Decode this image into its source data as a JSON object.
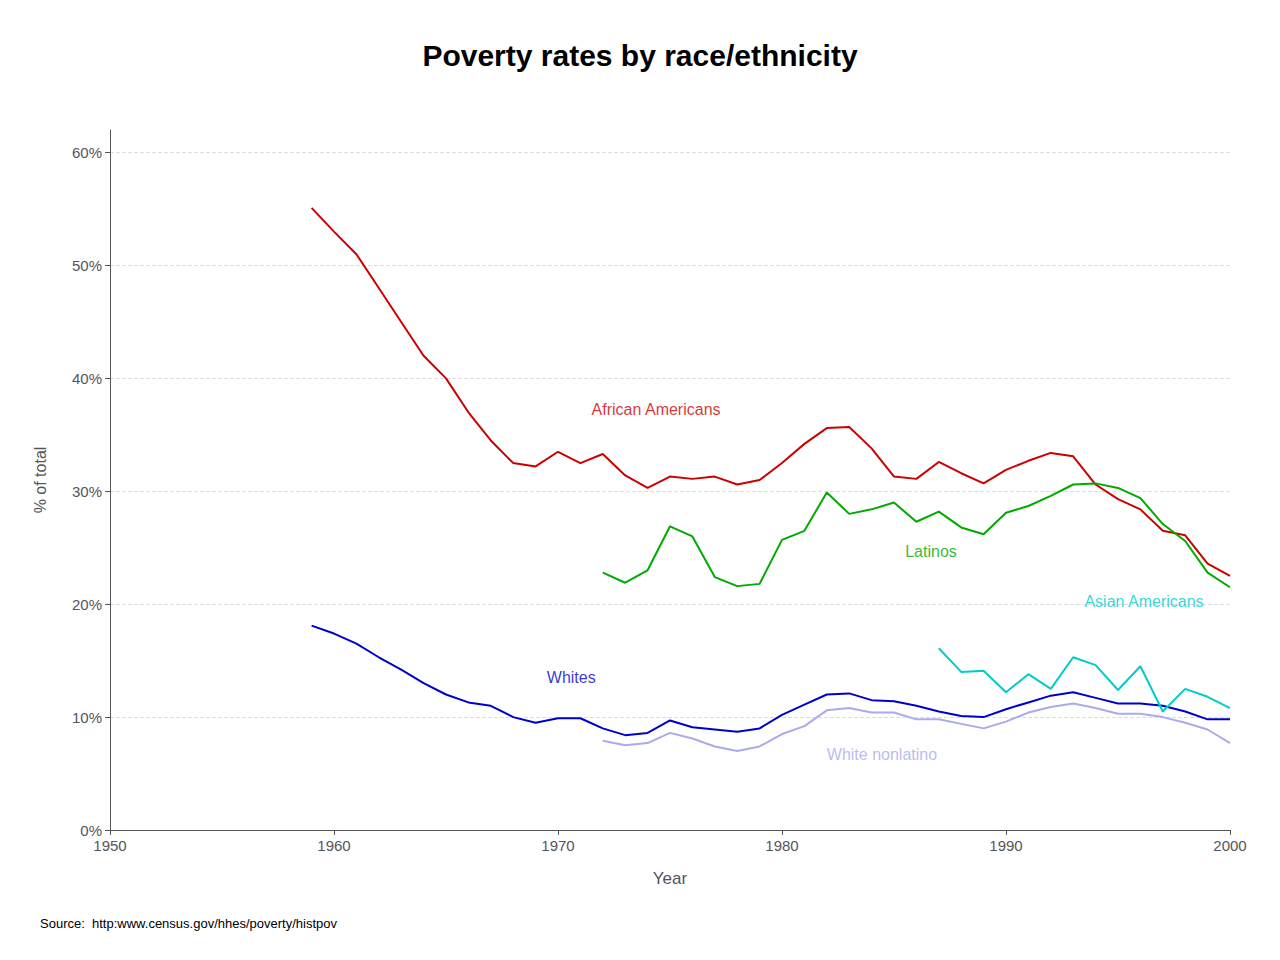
{
  "chart_data": {
    "type": "line",
    "title": "Poverty rates by race/ethnicity",
    "xlabel": "Year",
    "ylabel": "% of total",
    "source": "Source:  http:www.census.gov/hhes/poverty/histpov",
    "xlim": [
      1950,
      2000
    ],
    "ylim": [
      0,
      62
    ],
    "xticks": [
      1950,
      1960,
      1970,
      1980,
      1990,
      2000
    ],
    "yticks": [
      {
        "value": 0,
        "label": "0%"
      },
      {
        "value": 10,
        "label": "10%"
      },
      {
        "value": 20,
        "label": "20%"
      },
      {
        "value": 30,
        "label": "30%"
      },
      {
        "value": 40,
        "label": "40%"
      },
      {
        "value": 50,
        "label": "50%"
      },
      {
        "value": 60,
        "label": "60%"
      }
    ],
    "grid": true,
    "series": [
      {
        "name": "African Americans",
        "color": "#cc0000",
        "x": [
          1959,
          1960,
          1961,
          1962,
          1963,
          1964,
          1965,
          1966,
          1967,
          1968,
          1969,
          1970,
          1971,
          1972,
          1973,
          1974,
          1975,
          1976,
          1977,
          1978,
          1979,
          1980,
          1981,
          1982,
          1983,
          1984,
          1985,
          1986,
          1987,
          1988,
          1989,
          1990,
          1991,
          1992,
          1993,
          1994,
          1995,
          1996,
          1997,
          1998,
          1999,
          2000
        ],
        "values": [
          55.1,
          53.0,
          51.0,
          48.0,
          45.0,
          42.0,
          40.0,
          37.0,
          34.5,
          32.5,
          32.2,
          33.5,
          32.5,
          33.3,
          31.4,
          30.3,
          31.3,
          31.1,
          31.3,
          30.6,
          31.0,
          32.5,
          34.2,
          35.6,
          35.7,
          33.8,
          31.3,
          31.1,
          32.6,
          31.6,
          30.7,
          31.9,
          32.7,
          33.4,
          33.1,
          30.6,
          29.3,
          28.4,
          26.5,
          26.1,
          23.6,
          22.5
        ]
      },
      {
        "name": "Latinos",
        "color": "#00aa00",
        "x": [
          1972,
          1973,
          1974,
          1975,
          1976,
          1977,
          1978,
          1979,
          1980,
          1981,
          1982,
          1983,
          1984,
          1985,
          1986,
          1987,
          1988,
          1989,
          1990,
          1991,
          1992,
          1993,
          1994,
          1995,
          1996,
          1997,
          1998,
          1999,
          2000
        ],
        "values": [
          22.8,
          21.9,
          23.0,
          26.9,
          26.0,
          22.4,
          21.6,
          21.8,
          25.7,
          26.5,
          29.9,
          28.0,
          28.4,
          29.0,
          27.3,
          28.2,
          26.8,
          26.2,
          28.1,
          28.7,
          29.6,
          30.6,
          30.7,
          30.3,
          29.4,
          27.1,
          25.6,
          22.8,
          21.5
        ]
      },
      {
        "name": "Whites",
        "color": "#0000cc",
        "x": [
          1959,
          1960,
          1961,
          1962,
          1963,
          1964,
          1965,
          1966,
          1967,
          1968,
          1969,
          1970,
          1971,
          1972,
          1973,
          1974,
          1975,
          1976,
          1977,
          1978,
          1979,
          1980,
          1981,
          1982,
          1983,
          1984,
          1985,
          1986,
          1987,
          1988,
          1989,
          1990,
          1991,
          1992,
          1993,
          1994,
          1995,
          1996,
          1997,
          1998,
          1999,
          2000
        ],
        "values": [
          18.1,
          17.4,
          16.5,
          15.3,
          14.2,
          13.0,
          12.0,
          11.3,
          11.0,
          10.0,
          9.5,
          9.9,
          9.9,
          9.0,
          8.4,
          8.6,
          9.7,
          9.1,
          8.9,
          8.7,
          9.0,
          10.2,
          11.1,
          12.0,
          12.1,
          11.5,
          11.4,
          11.0,
          10.5,
          10.1,
          10.0,
          10.7,
          11.3,
          11.9,
          12.2,
          11.7,
          11.2,
          11.2,
          11.0,
          10.5,
          9.8,
          9.8
        ]
      },
      {
        "name": "White nonlatino",
        "color": "#aaaaee",
        "x": [
          1972,
          1973,
          1974,
          1975,
          1976,
          1977,
          1978,
          1979,
          1980,
          1981,
          1982,
          1983,
          1984,
          1985,
          1986,
          1987,
          1988,
          1989,
          1990,
          1991,
          1992,
          1993,
          1994,
          1995,
          1996,
          1997,
          1998,
          1999,
          2000
        ],
        "values": [
          7.9,
          7.5,
          7.7,
          8.6,
          8.1,
          7.4,
          7.0,
          7.4,
          8.5,
          9.2,
          10.6,
          10.8,
          10.4,
          10.4,
          9.8,
          9.8,
          9.4,
          9.0,
          9.6,
          10.4,
          10.9,
          11.2,
          10.8,
          10.3,
          10.3,
          10.0,
          9.5,
          8.9,
          7.7
        ]
      },
      {
        "name": "Asian Americans",
        "color": "#00cccc",
        "x": [
          1987,
          1988,
          1989,
          1990,
          1991,
          1992,
          1993,
          1994,
          1995,
          1996,
          1997,
          1998,
          1999,
          2000
        ],
        "values": [
          16.1,
          14.0,
          14.1,
          12.2,
          13.8,
          12.5,
          15.3,
          14.6,
          12.4,
          14.5,
          10.5,
          12.5,
          11.8,
          10.8
        ]
      }
    ],
    "annotations": [
      {
        "text": "African Americans",
        "x": 1971.5,
        "y": 36.5,
        "color": "#cc0000"
      },
      {
        "text": "Latinos",
        "x": 1985.5,
        "y": 24.0,
        "color": "#00aa00"
      },
      {
        "text": "Whites",
        "x": 1969.5,
        "y": 12.8,
        "color": "#0000cc"
      },
      {
        "text": "White nonlatino",
        "x": 1982.0,
        "y": 6.0,
        "color": "#aaaaee"
      },
      {
        "text": "Asian Americans",
        "x": 1993.5,
        "y": 19.5,
        "color": "#00cccc"
      }
    ]
  }
}
